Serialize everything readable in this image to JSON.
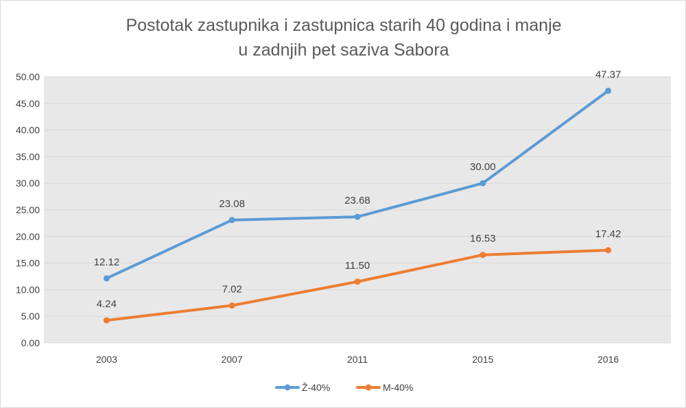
{
  "chart_data": {
    "type": "line",
    "title_lines": [
      "Postotak zastupnika i zastupnica starih 40 godina i manje",
      "u zadnjih pet saziva Sabora"
    ],
    "categories": [
      "2003",
      "2007",
      "2011",
      "2015",
      "2016"
    ],
    "ylim": [
      0,
      50
    ],
    "yticks": [
      0,
      5,
      10,
      15,
      20,
      25,
      30,
      35,
      40,
      45,
      50
    ],
    "ytick_labels": [
      "0.00",
      "5.00",
      "10.00",
      "15.00",
      "20.00",
      "25.00",
      "30.00",
      "35.00",
      "40.00",
      "45.00",
      "50.00"
    ],
    "grid": true,
    "legend_position": "bottom",
    "series": [
      {
        "name": "Ž-40%",
        "color": "#5b9bd5",
        "values": [
          12.12,
          23.08,
          23.68,
          30.0,
          47.37
        ],
        "labels": [
          "12.12",
          "23.08",
          "23.68",
          "30.00",
          "47.37"
        ]
      },
      {
        "name": "M-40%",
        "color": "#ed7d31",
        "values": [
          4.24,
          7.02,
          11.5,
          16.53,
          17.42
        ],
        "labels": [
          "4.24",
          "7.02",
          "11.50",
          "16.53",
          "17.42"
        ]
      }
    ],
    "plot_background": "#e8e8e8"
  }
}
